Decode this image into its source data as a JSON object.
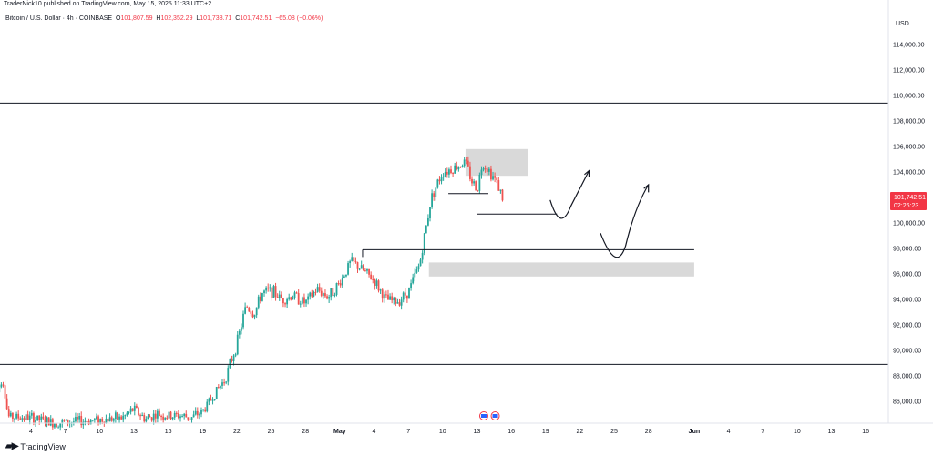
{
  "header": {
    "published": "TraderNick10 published on TradingView.com, May 15, 2025 11:33 UTC+2",
    "symbol": "Bitcoin / U.S. Dollar · 4h · COINBASE",
    "o_label": "O",
    "o_value": "101,807.59",
    "h_label": "H",
    "h_value": "102,352.29",
    "l_label": "L",
    "l_value": "101,738.71",
    "c_label": "C",
    "c_value": "101,742.51",
    "change": "−65.08 (−0.06%)"
  },
  "brand": {
    "logo_icon": "tradingview-logo-icon",
    "name": "TradingView"
  },
  "colors": {
    "up": "#26a69a",
    "down": "#ef5350",
    "price_tag": "#f23645",
    "zone": "#d9d9d9",
    "line": "#131722"
  },
  "chart_data": {
    "type": "candlestick",
    "currency": "USD",
    "ylim": [
      84000,
      116000
    ],
    "y_ticks": [
      86000,
      88000,
      90000,
      92000,
      94000,
      96000,
      98000,
      100000,
      102000,
      104000,
      106000,
      108000,
      110000,
      112000,
      114000
    ],
    "y_tick_labels": [
      "86,000.00",
      "88,000.00",
      "90,000.00",
      "92,000.00",
      "94,000.00",
      "96,000.00",
      "98,000.00",
      "100,000.00",
      "102,000.00",
      "104,000.00",
      "106,000.00",
      "108,000.00",
      "110,000.00",
      "112,000.00",
      "114,000.00"
    ],
    "x_ticks": [
      {
        "label": "4",
        "day": 4
      },
      {
        "label": "7",
        "day": 7
      },
      {
        "label": "10",
        "day": 10
      },
      {
        "label": "13",
        "day": 13
      },
      {
        "label": "16",
        "day": 16
      },
      {
        "label": "19",
        "day": 19
      },
      {
        "label": "22",
        "day": 22
      },
      {
        "label": "25",
        "day": 25
      },
      {
        "label": "28",
        "day": 28
      },
      {
        "label": "May",
        "day": 31
      },
      {
        "label": "4",
        "day": 34
      },
      {
        "label": "7",
        "day": 37
      },
      {
        "label": "10",
        "day": 40
      },
      {
        "label": "13",
        "day": 43
      },
      {
        "label": "16",
        "day": 46
      },
      {
        "label": "19",
        "day": 49
      },
      {
        "label": "22",
        "day": 52
      },
      {
        "label": "25",
        "day": 55
      },
      {
        "label": "28",
        "day": 58
      },
      {
        "label": "Jun",
        "day": 62
      },
      {
        "label": "4",
        "day": 65
      },
      {
        "label": "7",
        "day": 68
      },
      {
        "label": "10",
        "day": 71
      },
      {
        "label": "13",
        "day": 74
      },
      {
        "label": "16",
        "day": 77
      }
    ],
    "close_path": [
      {
        "day": 1.0,
        "price": 86500
      },
      {
        "day": 1.5,
        "price": 88000
      },
      {
        "day": 2.0,
        "price": 84800
      },
      {
        "day": 4,
        "price": 84700
      },
      {
        "day": 6,
        "price": 84300
      },
      {
        "day": 9,
        "price": 84500
      },
      {
        "day": 12,
        "price": 84700
      },
      {
        "day": 13,
        "price": 85400
      },
      {
        "day": 14,
        "price": 84600
      },
      {
        "day": 15,
        "price": 85000
      },
      {
        "day": 16,
        "price": 84800
      },
      {
        "day": 17,
        "price": 84900
      },
      {
        "day": 18,
        "price": 84700
      },
      {
        "day": 19,
        "price": 85200
      },
      {
        "day": 20,
        "price": 86500
      },
      {
        "day": 21,
        "price": 87800
      },
      {
        "day": 22,
        "price": 90500
      },
      {
        "day": 22.8,
        "price": 93500
      },
      {
        "day": 23.5,
        "price": 92800
      },
      {
        "day": 24.2,
        "price": 94500
      },
      {
        "day": 25,
        "price": 94700
      },
      {
        "day": 26,
        "price": 94000
      },
      {
        "day": 27,
        "price": 94300
      },
      {
        "day": 28,
        "price": 93700
      },
      {
        "day": 29,
        "price": 94800
      },
      {
        "day": 30,
        "price": 94200
      },
      {
        "day": 31,
        "price": 95300
      },
      {
        "day": 32,
        "price": 97000
      },
      {
        "day": 33,
        "price": 96300
      },
      {
        "day": 34,
        "price": 95500
      },
      {
        "day": 35,
        "price": 94000
      },
      {
        "day": 36,
        "price": 93800
      },
      {
        "day": 37,
        "price": 94600
      },
      {
        "day": 38,
        "price": 96800
      },
      {
        "day": 39,
        "price": 102000
      },
      {
        "day": 40,
        "price": 104000
      },
      {
        "day": 41,
        "price": 104300
      },
      {
        "day": 42,
        "price": 104800
      },
      {
        "day": 42.5,
        "price": 103400
      },
      {
        "day": 43,
        "price": 102600
      },
      {
        "day": 43.5,
        "price": 104800
      },
      {
        "day": 44,
        "price": 104200
      },
      {
        "day": 44.8,
        "price": 103100
      },
      {
        "day": 45.3,
        "price": 101742
      }
    ],
    "last_price": "101,742.51",
    "countdown": "02:26:23",
    "drawings": {
      "resistance_line": {
        "price": 109400
      },
      "support_line": {
        "price": 88900
      },
      "level_line": {
        "price": 97900,
        "from_day": 33,
        "to_day": 62
      },
      "demand_zone": {
        "top": 96900,
        "bottom": 95800,
        "from_day": 38.8,
        "to_day": 62
      },
      "supply_zone": {
        "top": 105800,
        "bottom": 103700,
        "from_day": 42,
        "to_day": 47.5
      },
      "range_low_line": {
        "price": 100700,
        "from_day": 43,
        "to_day": 50
      },
      "range_mid_line": {
        "price": 102300,
        "from_day": 40.5,
        "to_day": 44
      }
    }
  }
}
